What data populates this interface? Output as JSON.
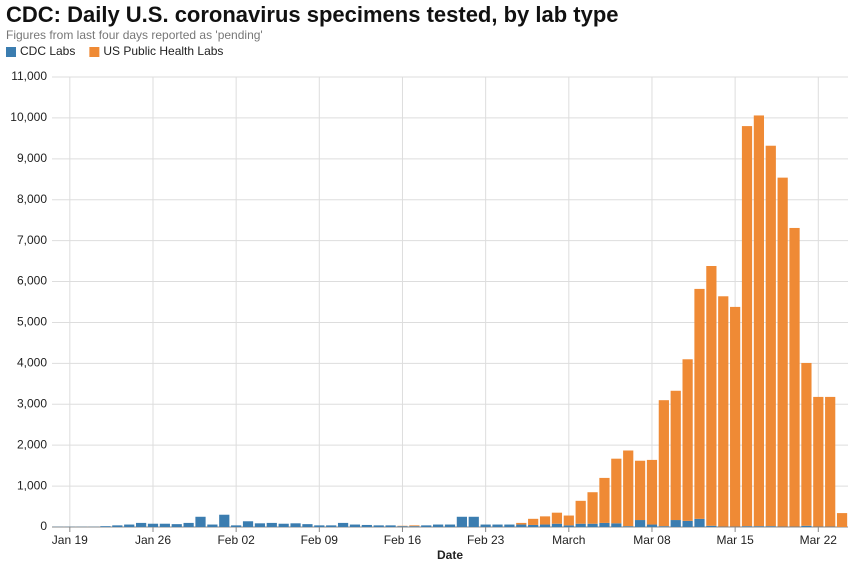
{
  "chart_data": {
    "type": "stacked_bar",
    "title": "CDC: Daily U.S. coronavirus specimens tested, by lab type",
    "subtitle": "Figures from last four days reported as 'pending'",
    "x_label": "Date",
    "categories": [
      null,
      "Jan 19",
      null,
      null,
      null,
      null,
      null,
      null,
      "Jan 26",
      null,
      null,
      null,
      null,
      null,
      null,
      "Feb 02",
      null,
      null,
      null,
      null,
      null,
      null,
      "Feb 09",
      null,
      null,
      null,
      null,
      null,
      null,
      "Feb 16",
      null,
      null,
      null,
      null,
      null,
      null,
      "Feb 23",
      null,
      null,
      null,
      null,
      null,
      null,
      "March",
      null,
      null,
      null,
      null,
      null,
      null,
      "Mar 08",
      null,
      null,
      null,
      null,
      null,
      null,
      "Mar 15",
      null,
      null,
      null,
      null,
      null,
      null,
      "Mar 22",
      null,
      null
    ],
    "series": [
      {
        "name": "CDC Labs",
        "color": "#3b7db0",
        "values": [
          4,
          4,
          4,
          4,
          20,
          40,
          60,
          100,
          80,
          80,
          70,
          100,
          250,
          60,
          300,
          40,
          140,
          90,
          100,
          80,
          90,
          70,
          40,
          40,
          100,
          60,
          50,
          40,
          40,
          20,
          20,
          40,
          60,
          60,
          250,
          250,
          60,
          60,
          60,
          60,
          50,
          60,
          80,
          40,
          80,
          80,
          100,
          90,
          20,
          170,
          60,
          20,
          170,
          150,
          200,
          30,
          10,
          10,
          20,
          20,
          20,
          10,
          10,
          30,
          10,
          10,
          0
        ]
      },
      {
        "name": "US Public Health Labs",
        "color": "#ef8a35",
        "values": [
          0,
          0,
          0,
          0,
          0,
          0,
          0,
          0,
          0,
          0,
          0,
          0,
          0,
          0,
          0,
          0,
          0,
          0,
          0,
          0,
          0,
          0,
          0,
          0,
          0,
          0,
          0,
          0,
          0,
          10,
          20,
          0,
          0,
          0,
          0,
          0,
          0,
          0,
          0,
          40,
          150,
          200,
          270,
          240,
          560,
          770,
          1100,
          1580,
          1850,
          1450,
          1580,
          3080,
          3160,
          3950,
          5620,
          6350,
          5630,
          5370,
          9780,
          10040,
          9300,
          8530,
          7300,
          3980,
          3170,
          3170,
          340
        ]
      }
    ],
    "ylim": [
      0,
      11000
    ],
    "yticks": [
      0,
      {
        "value": 1000,
        "label": "1,000"
      },
      {
        "value": 2000,
        "label": "2,000"
      },
      {
        "value": 3000,
        "label": "3,000"
      },
      {
        "value": 4000,
        "label": "4,000"
      },
      {
        "value": 5000,
        "label": "5,000"
      },
      {
        "value": 6000,
        "label": "6,000"
      },
      {
        "value": 7000,
        "label": "7,000"
      },
      {
        "value": 8000,
        "label": "8,000"
      },
      {
        "value": 9000,
        "label": "9,000"
      },
      {
        "value": 10000,
        "label": "10,000"
      },
      {
        "value": 11000,
        "label": "11,000"
      }
    ],
    "grid": true
  }
}
